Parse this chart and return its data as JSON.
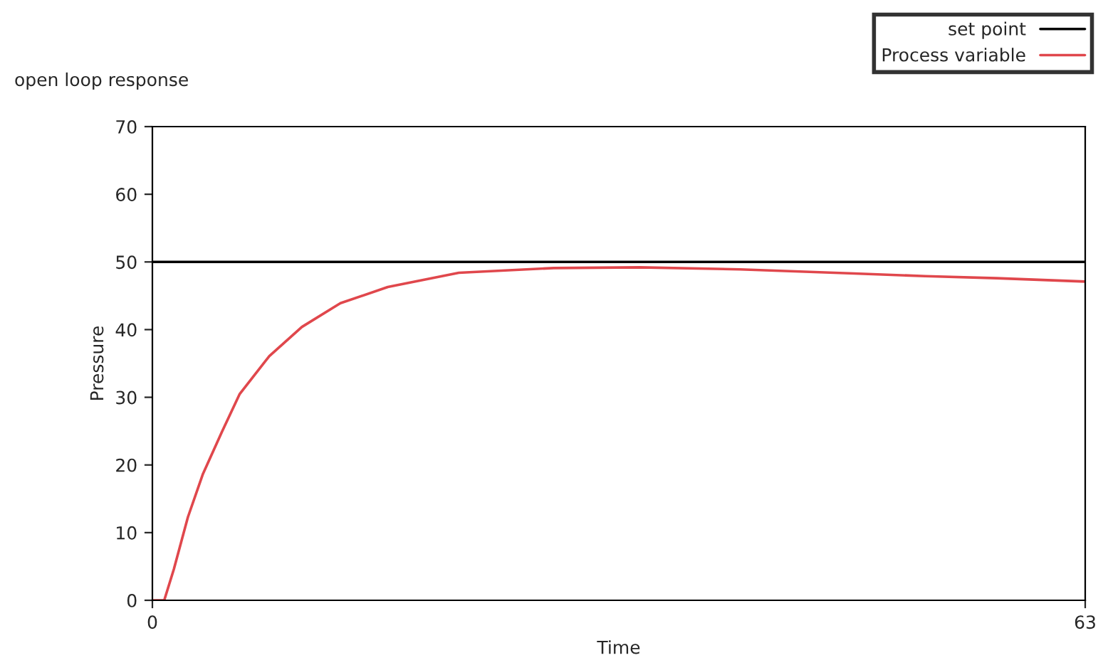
{
  "chart_data": {
    "type": "line",
    "title": "open loop response",
    "xlabel": "Time",
    "ylabel": "Pressure",
    "xlim": [
      0,
      63
    ],
    "xticks": [
      0,
      63
    ],
    "ylim": [
      0,
      70
    ],
    "yticks": [
      0,
      10,
      20,
      30,
      40,
      50,
      60,
      70
    ],
    "grid": false,
    "legend": "top right",
    "marker": "none",
    "line_style": "solid",
    "series": [
      {
        "name": "set point",
        "color": "#000000",
        "x": [
          0,
          63
        ],
        "values": [
          50,
          50
        ]
      },
      {
        "name": "Process variable",
        "color": "#e0474c",
        "x": [
          0,
          0.8,
          1.45,
          2.4,
          3.4,
          4.7,
          5.9,
          7.9,
          10.1,
          12.7,
          15.9,
          20.7,
          27.1,
          32.9,
          39.7,
          47.4,
          52.2,
          57.0,
          63
        ],
        "values": [
          0,
          0,
          4.6,
          12.3,
          18.6,
          24.9,
          30.5,
          36.1,
          40.4,
          43.9,
          46.3,
          48.4,
          49.1,
          49.2,
          48.9,
          48.3,
          47.9,
          47.6,
          47.1
        ]
      }
    ]
  }
}
